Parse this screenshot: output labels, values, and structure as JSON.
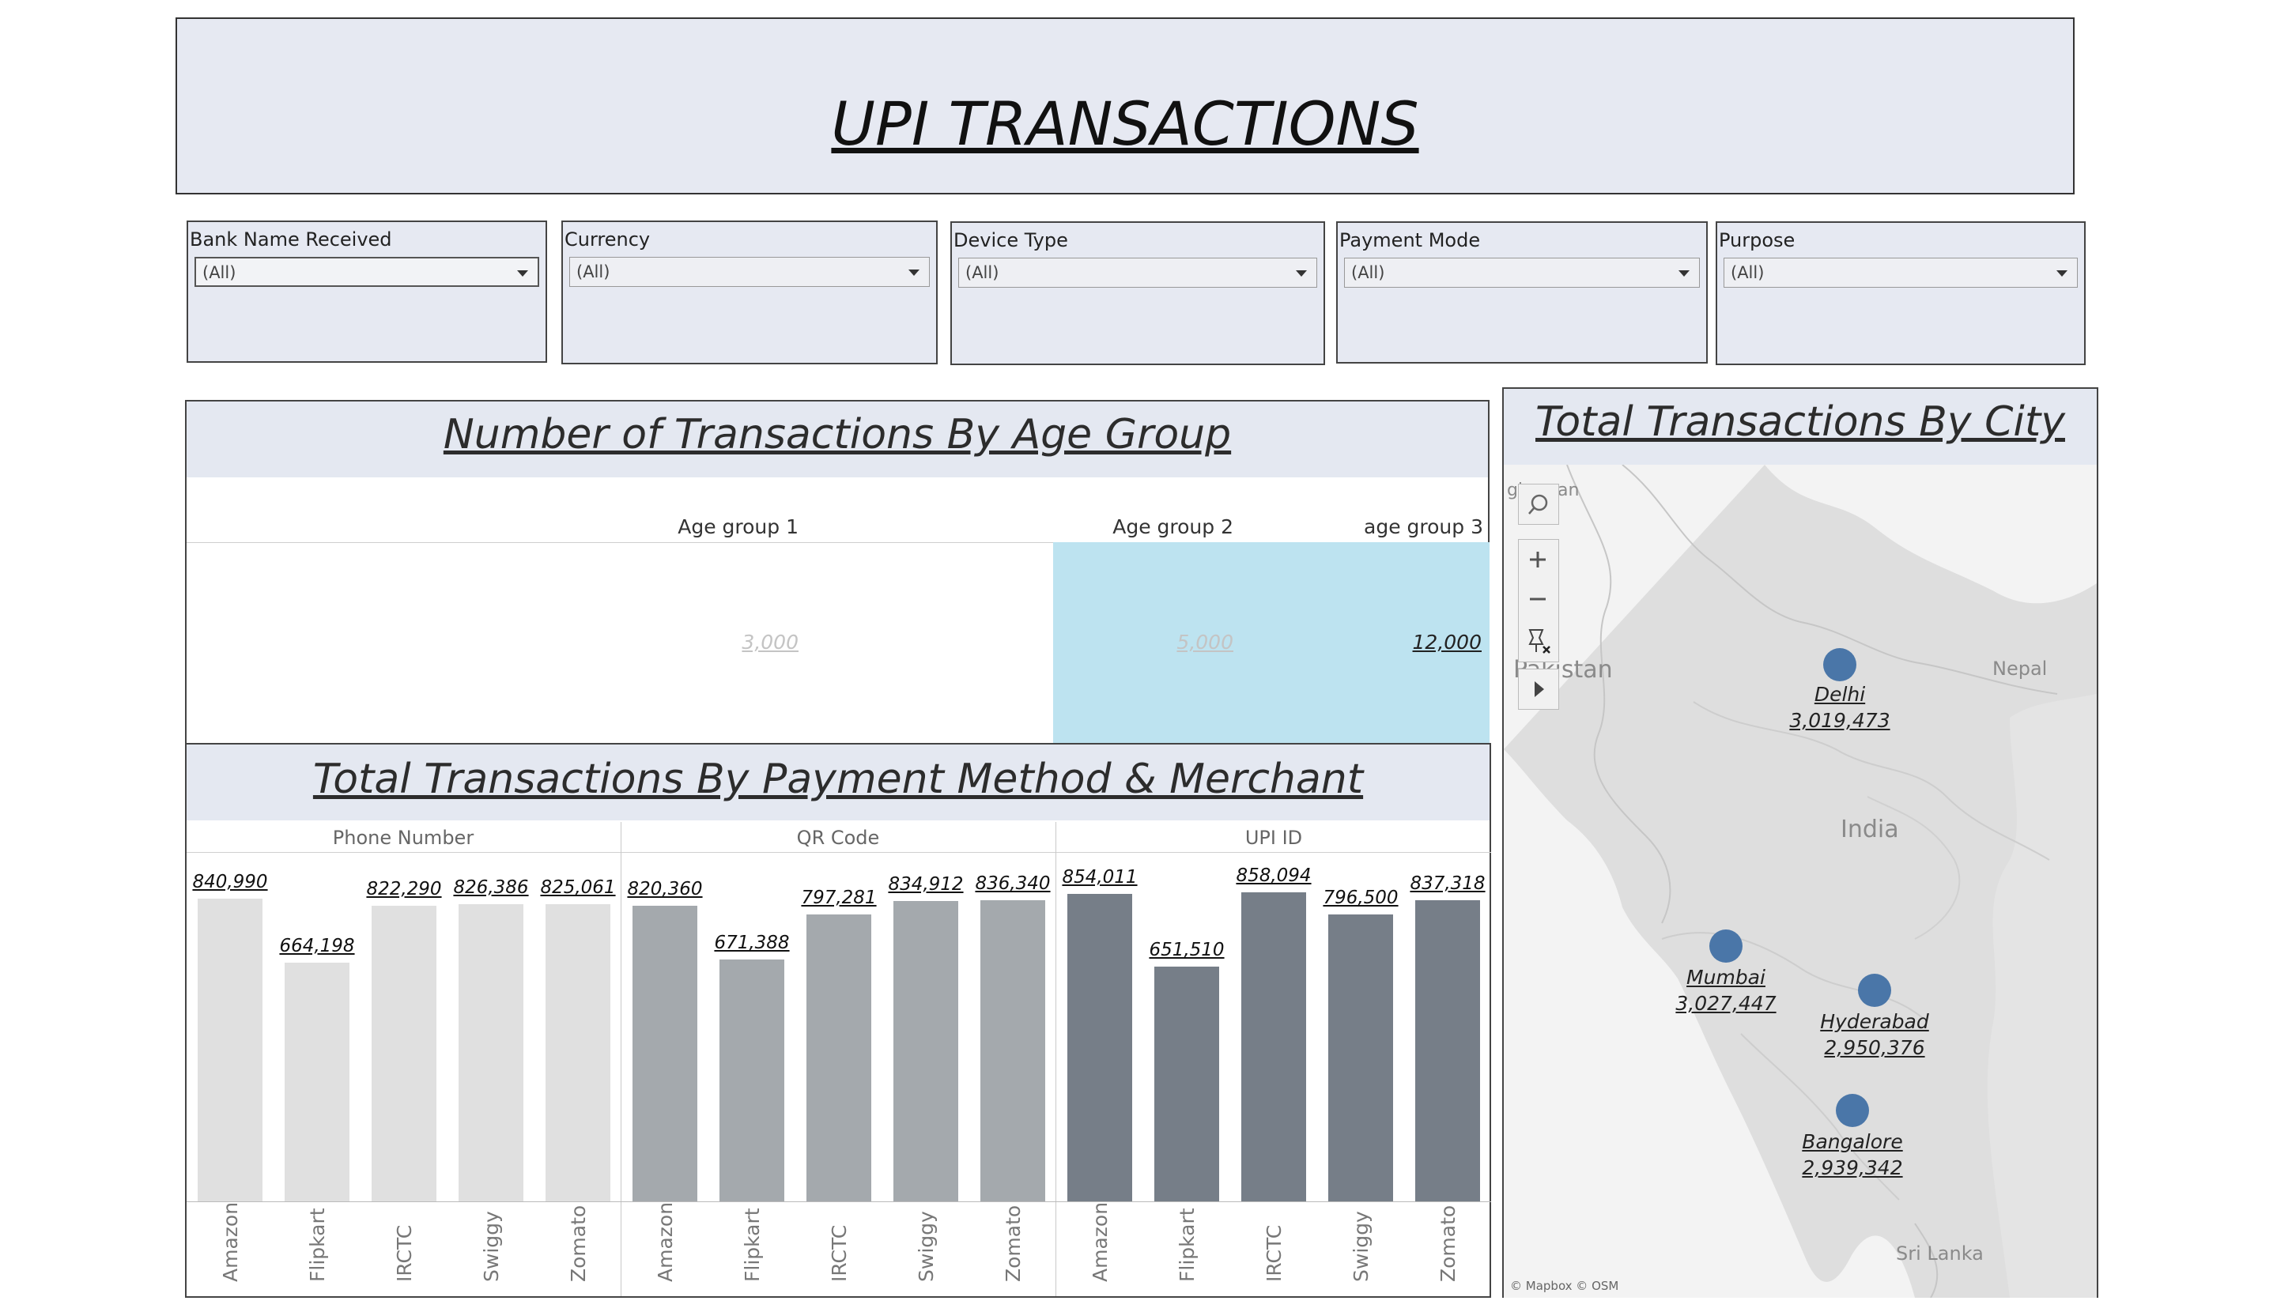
{
  "header": {
    "title": "UPI TRANSACTIONS"
  },
  "filters": [
    {
      "label": "Bank Name Received",
      "value": "(All)"
    },
    {
      "label": "Currency",
      "value": "(All)"
    },
    {
      "label": "Device Type",
      "value": "(All)"
    },
    {
      "label": "Payment Mode",
      "value": "(All)"
    },
    {
      "label": "Purpose",
      "value": "(All)"
    }
  ],
  "age_panel": {
    "title": "Number of Transactions By Age Group",
    "groups": [
      {
        "label": "Age group 1",
        "value": "3,000"
      },
      {
        "label": "Age group 2",
        "value": "5,000"
      },
      {
        "label": "age group 3",
        "value": "12,000"
      }
    ]
  },
  "payment_panel": {
    "title": "Total Transactions By Payment Method & Merchant",
    "sections": [
      "Phone Number",
      "QR Code",
      "UPI ID"
    ],
    "categories": [
      "Amazon",
      "Flipkart",
      "IRCTC",
      "Swiggy",
      "Zomato"
    ]
  },
  "chart_data": {
    "type": "bar",
    "categories": [
      "Amazon",
      "Flipkart",
      "IRCTC",
      "Swiggy",
      "Zomato"
    ],
    "series": [
      {
        "name": "Phone Number",
        "values": [
          840990,
          664198,
          822290,
          826386,
          825061
        ],
        "labels": [
          "840,990",
          "664,198",
          "822,290",
          "826,386",
          "825,061"
        ],
        "color": "#e0e0e0"
      },
      {
        "name": "QR Code",
        "values": [
          820360,
          671388,
          797281,
          834912,
          836340
        ],
        "labels": [
          "820,360",
          "671,388",
          "797,281",
          "834,912",
          "836,340"
        ],
        "color": "#a4a9ad"
      },
      {
        "name": "UPI ID",
        "values": [
          854011,
          651510,
          858094,
          796500,
          837318
        ],
        "labels": [
          "854,011",
          "651,510",
          "858,094",
          "796,500",
          "837,318"
        ],
        "color": "#767e88"
      }
    ],
    "ylim": [
      0,
      940000
    ]
  },
  "city_panel": {
    "title": "Total Transactions By City",
    "cities": [
      {
        "name": "Delhi",
        "value": "3,019,473"
      },
      {
        "name": "Mumbai",
        "value": "3,027,447"
      },
      {
        "name": "Hyderabad",
        "value": "2,950,376"
      },
      {
        "name": "Bangalore",
        "value": "2,939,342"
      }
    ],
    "map_labels": {
      "pakistan": "Pakistan",
      "nepal": "Nepal",
      "india": "India",
      "sri_lanka": "Sri Lanka",
      "afghanistan_fragment": "gh",
      "afghanistan_fragment2": "an"
    },
    "attribution": "© Mapbox © OSM"
  }
}
